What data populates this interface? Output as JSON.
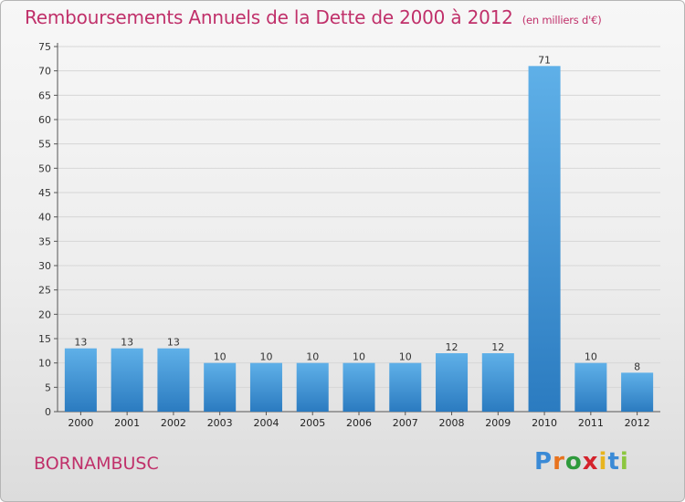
{
  "header": {
    "title": "Remboursements Annuels de la Dette de 2000 à 2012",
    "unit": "(en milliers d'€)"
  },
  "footer": {
    "commune": "BORNAMBUSC",
    "brand_letters": [
      "P",
      "r",
      "o",
      "x",
      "i",
      "t",
      "i"
    ],
    "brand_colors": [
      "#3a8ad6",
      "#e8731e",
      "#2e9a3c",
      "#d4232c",
      "#e8b41e",
      "#3a8ad6",
      "#8cc63f"
    ]
  },
  "colors": {
    "title": "#c0306a",
    "bar_top": "#5fb0e8",
    "bar_bottom": "#2b7bc0"
  },
  "chart_data": {
    "type": "bar",
    "title": "Remboursements Annuels de la Dette de 2000 à 2012",
    "xlabel": "",
    "ylabel": "",
    "categories": [
      "2000",
      "2001",
      "2002",
      "2003",
      "2004",
      "2005",
      "2006",
      "2007",
      "2008",
      "2009",
      "2010",
      "2011",
      "2012"
    ],
    "values": [
      13,
      13,
      13,
      10,
      10,
      10,
      10,
      10,
      12,
      12,
      71,
      10,
      8
    ],
    "ylim": [
      0,
      75
    ],
    "yticks": [
      0,
      5,
      10,
      15,
      20,
      25,
      30,
      35,
      40,
      45,
      50,
      55,
      60,
      65,
      70,
      75
    ],
    "grid": true
  }
}
